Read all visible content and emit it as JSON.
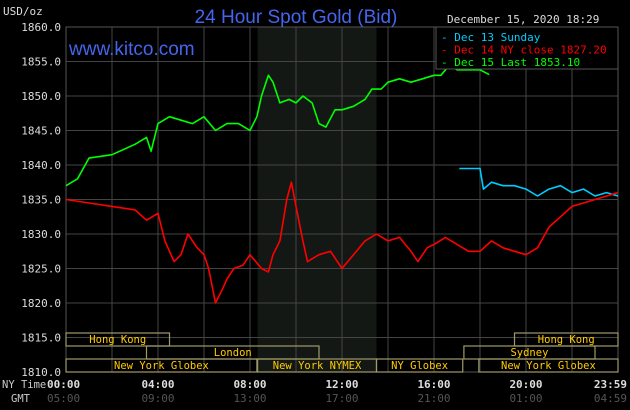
{
  "chart_data": {
    "type": "line",
    "title": "24 Hour Spot Gold (Bid)",
    "ylabel": "USD/oz",
    "website": "www.kitco.com",
    "timestamp": "December 15, 2020 18:29",
    "ylim": [
      1810,
      1860
    ],
    "xlim_hours": [
      0,
      24
    ],
    "y_ticks": [
      "1860.0",
      "1855.0",
      "1850.0",
      "1845.0",
      "1840.0",
      "1835.0",
      "1830.0",
      "1825.0",
      "1820.0",
      "1815.0",
      "1810.0"
    ],
    "y_tick_values": [
      1860,
      1855,
      1850,
      1845,
      1840,
      1835,
      1830,
      1825,
      1820,
      1815,
      1810
    ],
    "x_row_labels": {
      "ny": "NY Time",
      "gmt": "GMT"
    },
    "x_ticks": [
      {
        "hour": 0,
        "ny": "00:00",
        "gmt": "05:00"
      },
      {
        "hour": 4,
        "ny": "04:00",
        "gmt": "09:00"
      },
      {
        "hour": 8,
        "ny": "08:00",
        "gmt": "13:00"
      },
      {
        "hour": 12,
        "ny": "12:00",
        "gmt": "17:00"
      },
      {
        "hour": 16,
        "ny": "16:00",
        "gmt": "21:00"
      },
      {
        "hour": 20,
        "ny": "20:00",
        "gmt": "01:00"
      },
      {
        "hour": 23.98,
        "ny": "23:59",
        "gmt": "04:59"
      }
    ],
    "shaded_hours": [
      8.33,
      13.5
    ],
    "grid": true,
    "legend_position": "top-right",
    "series": [
      {
        "name": "Dec 13 Sunday",
        "color": "#00ccff",
        "x": [
          17.1,
          18,
          18.15,
          18.5,
          19,
          19.5,
          20,
          20.5,
          21,
          21.5,
          22,
          22.5,
          23,
          23.5,
          24
        ],
        "y": [
          1839.5,
          1839.5,
          1836.5,
          1837.5,
          1837,
          1837,
          1836.5,
          1835.5,
          1836.5,
          1837,
          1836,
          1836.5,
          1835.5,
          1836,
          1835.5
        ]
      },
      {
        "name": "Dec 14 NY close 1827.20",
        "color": "#ff0000",
        "x": [
          0,
          1,
          2,
          3,
          3.5,
          4,
          4.3,
          4.7,
          5,
          5.3,
          5.7,
          6,
          6.2,
          6.5,
          6.8,
          7,
          7.3,
          7.7,
          8,
          8.5,
          8.8,
          9,
          9.3,
          9.6,
          9.8,
          10,
          10.3,
          10.5,
          11,
          11.5,
          12,
          12.5,
          13,
          13.5,
          14,
          14.5,
          15,
          15.3,
          15.7,
          16,
          16.5,
          17,
          17.5,
          18,
          18.5,
          19,
          19.5,
          20,
          20.5,
          21,
          21.5,
          22,
          22.5,
          23,
          24
        ],
        "y": [
          1835,
          1834.5,
          1834,
          1833.5,
          1832,
          1833,
          1829,
          1826,
          1827,
          1830,
          1828,
          1827,
          1825,
          1820,
          1822,
          1823.5,
          1825,
          1825.5,
          1827,
          1825,
          1824.5,
          1827,
          1829,
          1835,
          1837.5,
          1834,
          1829,
          1826,
          1827,
          1827.5,
          1825,
          1827,
          1829,
          1830,
          1829,
          1829.5,
          1827.5,
          1826,
          1828,
          1828.5,
          1829.5,
          1828.5,
          1827.5,
          1827.5,
          1829,
          1828,
          1827.5,
          1827,
          1828,
          1831,
          1832.5,
          1834,
          1834.5,
          1835,
          1836
        ]
      },
      {
        "name": "Dec 15 Last 1853.10",
        "color": "#00ff00",
        "x": [
          0,
          0.5,
          1,
          2,
          3,
          3.5,
          3.7,
          4,
          4.5,
          5,
          5.5,
          6,
          6.5,
          7,
          7.5,
          8,
          8.3,
          8.5,
          8.8,
          9,
          9.3,
          9.7,
          10,
          10.3,
          10.7,
          11,
          11.3,
          11.7,
          12,
          12.5,
          13,
          13.3,
          13.7,
          14,
          14.5,
          15,
          15.5,
          16,
          16.3,
          16.5,
          16.7,
          17,
          18,
          18.4
        ],
        "y": [
          1837,
          1838,
          1841,
          1841.5,
          1843,
          1844,
          1842,
          1846,
          1847,
          1846.5,
          1846,
          1847,
          1845,
          1846,
          1846,
          1845,
          1847,
          1850,
          1853,
          1852,
          1849,
          1849.5,
          1849,
          1850,
          1849,
          1846,
          1845.5,
          1848,
          1848,
          1848.5,
          1849.5,
          1851,
          1851,
          1852,
          1852.5,
          1852,
          1852.5,
          1853,
          1853,
          1853.8,
          1854.5,
          1853.8,
          1853.8,
          1853.1
        ]
      }
    ],
    "sessions": [
      {
        "name": "Hong Kong",
        "row": 0,
        "start": 0,
        "end": 4.5
      },
      {
        "name": "Hong Kong",
        "row": 0,
        "start": 19.5,
        "end": 24
      },
      {
        "name": "London",
        "row": 1,
        "start": 3.5,
        "end": 11
      },
      {
        "name": "Sydney",
        "row": 1,
        "start": 17.3,
        "end": 23
      },
      {
        "name": "New York Globex",
        "row": 2,
        "start": 0,
        "end": 8.3
      },
      {
        "name": "New York NYMEX",
        "row": 2,
        "start": 8.33,
        "end": 13.5
      },
      {
        "name": "NY Globex",
        "row": 2,
        "start": 13.5,
        "end": 17.25
      },
      {
        "name": "New York Globex",
        "row": 2,
        "start": 17.95,
        "end": 24
      }
    ]
  }
}
